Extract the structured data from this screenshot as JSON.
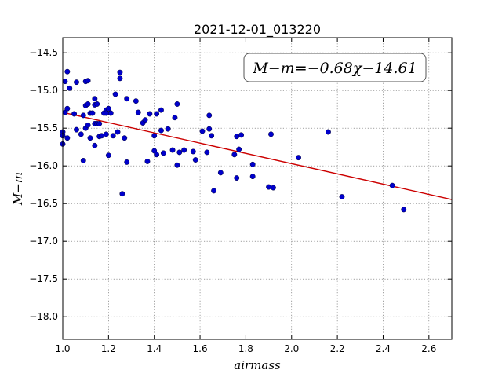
{
  "chart_data": {
    "type": "scatter",
    "title": "2021-12-01_013220",
    "xlabel": "airmass",
    "ylabel": "M−m",
    "xlim": [
      1.0,
      2.7
    ],
    "ylim": [
      -18.3,
      -14.3
    ],
    "y_inverted": true,
    "xticks": [
      1.0,
      1.2,
      1.4,
      1.6,
      1.8,
      2.0,
      2.2,
      2.4,
      2.6
    ],
    "yticks": [
      -14.5,
      -15.0,
      -15.5,
      -16.0,
      -16.5,
      -17.0,
      -17.5,
      -18.0
    ],
    "grid": true,
    "colors": {
      "points": "#0000cc",
      "fit": "#cc0000"
    },
    "fit": {
      "slope": -0.68,
      "intercept": -14.61,
      "label": "M−m=−0.68χ−14.61"
    },
    "series": [
      {
        "points": [
          [
            1.0,
            -15.55
          ],
          [
            1.0,
            -15.6
          ],
          [
            1.0,
            -15.71
          ],
          [
            1.01,
            -15.29
          ],
          [
            1.01,
            -14.88
          ],
          [
            1.02,
            -14.75
          ],
          [
            1.02,
            -15.24
          ],
          [
            1.02,
            -15.63
          ],
          [
            1.03,
            -14.97
          ],
          [
            1.05,
            -15.31
          ],
          [
            1.06,
            -14.89
          ],
          [
            1.06,
            -15.52
          ],
          [
            1.08,
            -15.58
          ],
          [
            1.09,
            -15.33
          ],
          [
            1.09,
            -15.93
          ],
          [
            1.1,
            -15.2
          ],
          [
            1.1,
            -15.5
          ],
          [
            1.1,
            -14.88
          ],
          [
            1.11,
            -14.87
          ],
          [
            1.11,
            -15.18
          ],
          [
            1.11,
            -15.46
          ],
          [
            1.12,
            -15.63
          ],
          [
            1.12,
            -15.3
          ],
          [
            1.13,
            -15.3
          ],
          [
            1.14,
            -15.19
          ],
          [
            1.14,
            -15.11
          ],
          [
            1.14,
            -15.44
          ],
          [
            1.14,
            -15.73
          ],
          [
            1.15,
            -15.18
          ],
          [
            1.15,
            -15.44
          ],
          [
            1.16,
            -15.44
          ],
          [
            1.16,
            -15.61
          ],
          [
            1.17,
            -15.6
          ],
          [
            1.18,
            -15.3
          ],
          [
            1.19,
            -15.26
          ],
          [
            1.19,
            -15.3
          ],
          [
            1.19,
            -15.58
          ],
          [
            1.2,
            -15.86
          ],
          [
            1.2,
            -15.24
          ],
          [
            1.21,
            -15.3
          ],
          [
            1.22,
            -15.6
          ],
          [
            1.23,
            -15.05
          ],
          [
            1.24,
            -15.55
          ],
          [
            1.25,
            -14.76
          ],
          [
            1.25,
            -14.84
          ],
          [
            1.26,
            -16.37
          ],
          [
            1.27,
            -15.63
          ],
          [
            1.28,
            -15.11
          ],
          [
            1.28,
            -15.95
          ],
          [
            1.32,
            -15.14
          ],
          [
            1.33,
            -15.29
          ],
          [
            1.35,
            -15.43
          ],
          [
            1.36,
            -15.39
          ],
          [
            1.37,
            -15.94
          ],
          [
            1.38,
            -15.31
          ],
          [
            1.4,
            -15.6
          ],
          [
            1.4,
            -15.8
          ],
          [
            1.41,
            -15.31
          ],
          [
            1.41,
            -15.85
          ],
          [
            1.43,
            -15.26
          ],
          [
            1.43,
            -15.53
          ],
          [
            1.44,
            -15.83
          ],
          [
            1.46,
            -15.51
          ],
          [
            1.48,
            -15.79
          ],
          [
            1.49,
            -15.36
          ],
          [
            1.5,
            -15.99
          ],
          [
            1.5,
            -15.18
          ],
          [
            1.51,
            -15.82
          ],
          [
            1.53,
            -15.79
          ],
          [
            1.57,
            -15.81
          ],
          [
            1.58,
            -15.92
          ],
          [
            1.61,
            -15.54
          ],
          [
            1.63,
            -15.82
          ],
          [
            1.64,
            -15.33
          ],
          [
            1.64,
            -15.51
          ],
          [
            1.65,
            -15.6
          ],
          [
            1.66,
            -16.33
          ],
          [
            1.69,
            -16.09
          ],
          [
            1.75,
            -15.85
          ],
          [
            1.76,
            -16.16
          ],
          [
            1.76,
            -15.61
          ],
          [
            1.77,
            -15.78
          ],
          [
            1.78,
            -15.59
          ],
          [
            1.83,
            -16.14
          ],
          [
            1.83,
            -15.98
          ],
          [
            1.9,
            -16.28
          ],
          [
            1.91,
            -15.58
          ],
          [
            1.92,
            -16.29
          ],
          [
            2.03,
            -15.89
          ],
          [
            2.16,
            -15.55
          ],
          [
            2.22,
            -16.41
          ],
          [
            2.44,
            -16.26
          ],
          [
            2.49,
            -16.58
          ]
        ]
      }
    ]
  }
}
